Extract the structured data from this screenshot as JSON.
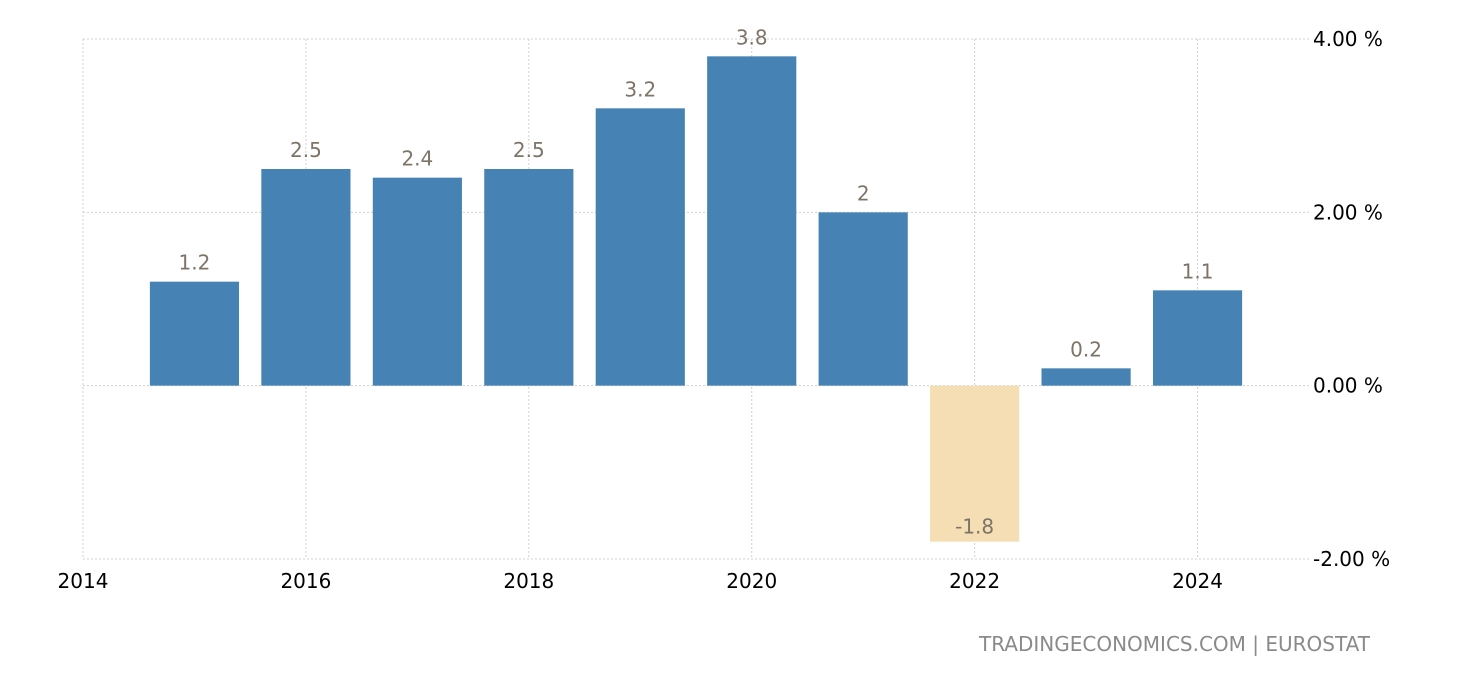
{
  "chart_data": {
    "type": "bar",
    "categories": [
      "2015",
      "2016",
      "2017",
      "2018",
      "2019",
      "2020",
      "2021",
      "2022",
      "2023",
      "2024"
    ],
    "values": [
      1.2,
      2.5,
      2.4,
      2.5,
      3.2,
      3.8,
      2,
      -1.8,
      0.2,
      1.1
    ],
    "data_labels": [
      "1.2",
      "2.5",
      "2.4",
      "2.5",
      "3.2",
      "3.8",
      "2",
      "-1.8",
      "0.2",
      "1.1"
    ],
    "title": "",
    "xlabel": "",
    "ylabel": "",
    "ylim": [
      -2,
      4
    ],
    "y_ticks": [
      {
        "value": 4,
        "label": "4.00 %"
      },
      {
        "value": 2,
        "label": "2.00 %"
      },
      {
        "value": 0,
        "label": "0.00 %"
      },
      {
        "value": -2,
        "label": "-2.00 %"
      }
    ],
    "x_ticks": [
      {
        "value": 2014,
        "label": "2014"
      },
      {
        "value": 2016,
        "label": "2016"
      },
      {
        "value": 2018,
        "label": "2018"
      },
      {
        "value": 2020,
        "label": "2020"
      },
      {
        "value": 2022,
        "label": "2022"
      },
      {
        "value": 2024,
        "label": "2024"
      }
    ],
    "xlim": [
      2014,
      2025
    ],
    "grid": true,
    "y_axis_position": "right",
    "colors": {
      "positive": "#4682b4",
      "negative": "#f5deb3",
      "data_label": "#7d7468"
    }
  },
  "footer": {
    "source": "TRADINGECONOMICS.COM | EUROSTAT"
  }
}
